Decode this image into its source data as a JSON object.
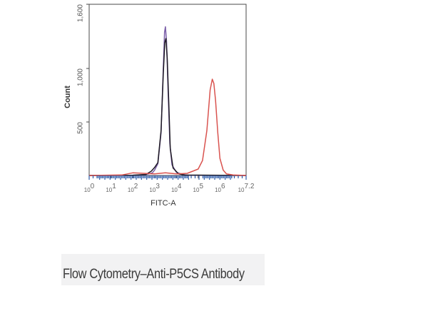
{
  "caption": "Flow Cytometry–Anti-P5CS Antibody",
  "chart_data": {
    "type": "line",
    "title": "",
    "xlabel": "FITC-A",
    "ylabel": "Count",
    "x_scale": "log",
    "xlim": [
      0,
      7.2
    ],
    "ylim": [
      0,
      1600
    ],
    "x_ticks": [
      {
        "value": 0,
        "base": "10",
        "exp": "0"
      },
      {
        "value": 1,
        "base": "10",
        "exp": "1"
      },
      {
        "value": 2,
        "base": "10",
        "exp": "2"
      },
      {
        "value": 3,
        "base": "10",
        "exp": "3"
      },
      {
        "value": 4,
        "base": "10",
        "exp": "4"
      },
      {
        "value": 5,
        "base": "10",
        "exp": "5"
      },
      {
        "value": 6,
        "base": "10",
        "exp": "6"
      },
      {
        "value": 7.2,
        "base": "10",
        "exp": "7.2"
      }
    ],
    "y_ticks": [
      {
        "value": 500,
        "label": "500"
      },
      {
        "value": 1000,
        "label": "1,000"
      },
      {
        "value": 1600,
        "label": "1,600"
      }
    ],
    "grid": false,
    "series": [
      {
        "color": "#7a5ea8",
        "x": [
          0,
          2.0,
          2.6,
          2.9,
          3.0,
          3.15,
          3.3,
          3.4,
          3.46,
          3.5,
          3.55,
          3.62,
          3.7,
          3.8,
          4.0,
          4.3,
          4.6,
          7.2
        ],
        "y": [
          0,
          2,
          8,
          25,
          50,
          110,
          400,
          1000,
          1340,
          1390,
          1250,
          800,
          300,
          100,
          30,
          8,
          2,
          0
        ]
      },
      {
        "color": "#1e1a24",
        "x": [
          0,
          2.0,
          2.6,
          2.85,
          3.0,
          3.15,
          3.3,
          3.4,
          3.47,
          3.52,
          3.58,
          3.65,
          3.72,
          3.85,
          4.1,
          4.4,
          7.2
        ],
        "y": [
          0,
          3,
          10,
          40,
          75,
          120,
          420,
          950,
          1240,
          1280,
          1100,
          700,
          250,
          70,
          15,
          4,
          0
        ]
      },
      {
        "color": "#d9534f",
        "x": [
          0,
          1.5,
          2.0,
          2.5,
          3.0,
          3.5,
          4.0,
          4.5,
          5.0,
          5.2,
          5.4,
          5.55,
          5.65,
          5.72,
          5.8,
          5.9,
          6.0,
          6.15,
          6.3,
          6.6,
          7.2
        ],
        "y": [
          0,
          5,
          25,
          20,
          15,
          25,
          15,
          20,
          60,
          140,
          420,
          800,
          900,
          860,
          700,
          400,
          160,
          50,
          15,
          5,
          0
        ]
      }
    ]
  }
}
